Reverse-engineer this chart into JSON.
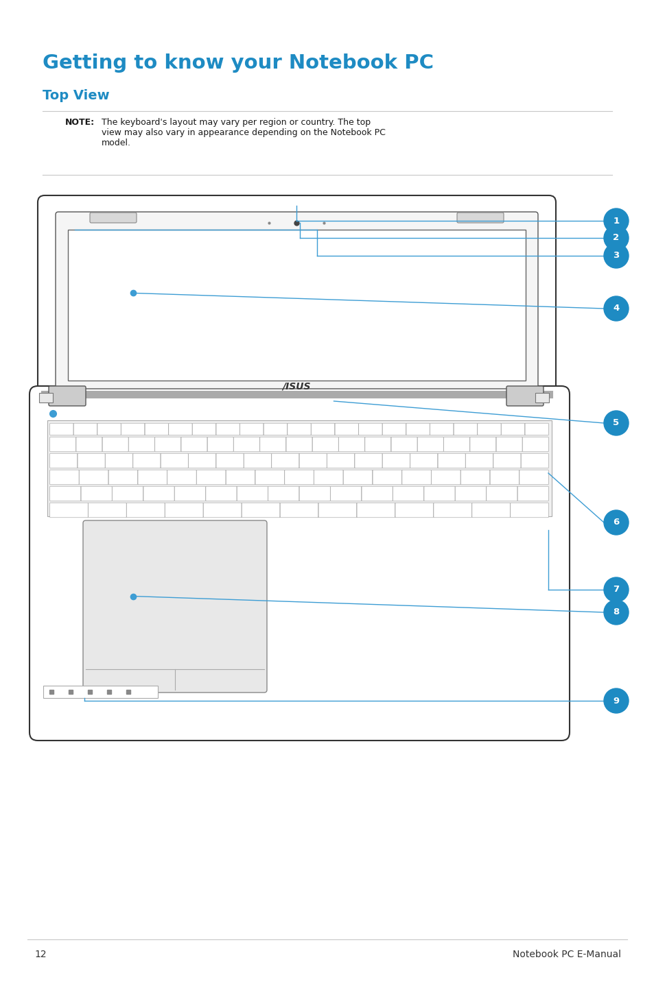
{
  "title": "Getting to know your Notebook PC",
  "subtitle": "Top View",
  "note_bold": "NOTE:",
  "note_text": "The keyboard's layout may vary per region or country. The top\nview may also vary in appearance depending on the Notebook PC\nmodel.",
  "page_number": "12",
  "page_right": "Notebook PC E-Manual",
  "title_color": "#1e8bc3",
  "subtitle_color": "#1e8bc3",
  "line_color": "#c8c8c8",
  "diagram_line_color": "#3d9dd4",
  "bubble_color": "#1e8bc3",
  "bubble_text_color": "#ffffff",
  "bg_color": "#ffffff",
  "labels": [
    "1",
    "2",
    "3",
    "4",
    "5",
    "6",
    "7",
    "8",
    "9"
  ]
}
